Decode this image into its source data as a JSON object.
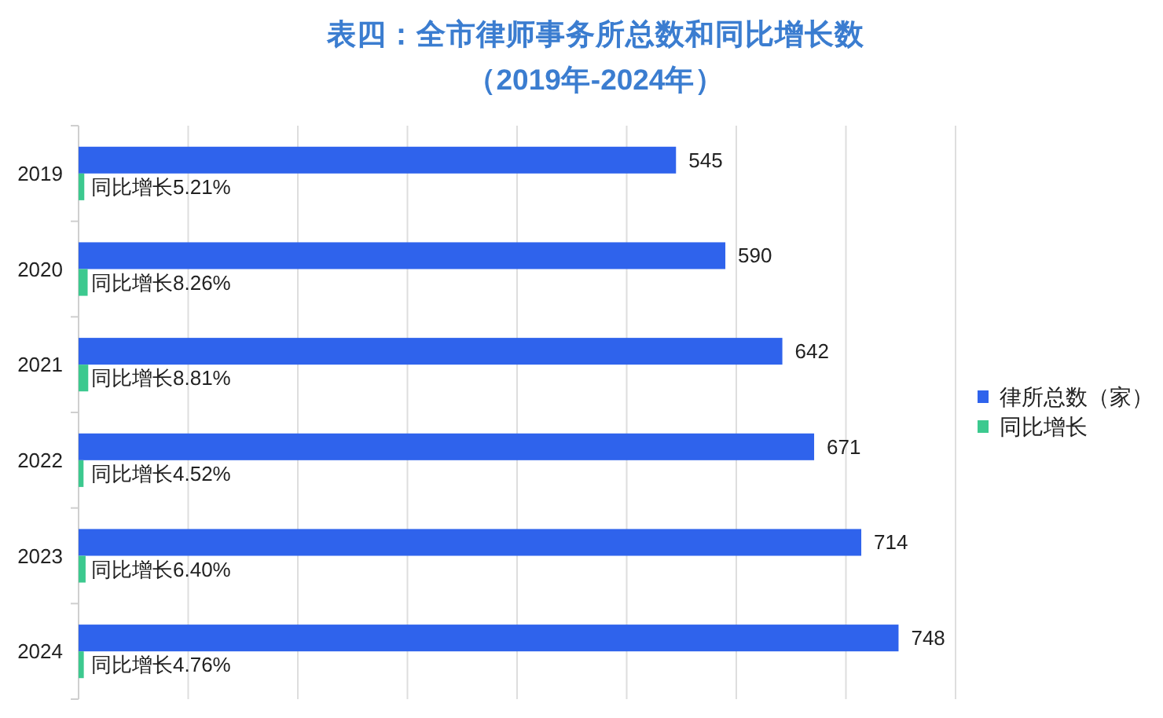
{
  "chart_data": {
    "type": "bar",
    "orientation": "horizontal",
    "title": "表四：全市律师事务所总数和同比增长数",
    "subtitle": "（2019年-2024年）",
    "categories": [
      "2019",
      "2020",
      "2021",
      "2022",
      "2023",
      "2024"
    ],
    "series": [
      {
        "name": "律所总数（家）",
        "color": "#2f63ec",
        "values": [
          545,
          590,
          642,
          671,
          714,
          748
        ],
        "value_labels": [
          "545",
          "590",
          "642",
          "671",
          "714",
          "748"
        ]
      },
      {
        "name": "同比增长",
        "color": "#3cc98f",
        "values": [
          5.21,
          8.26,
          8.81,
          4.52,
          6.4,
          4.76
        ],
        "value_labels": [
          "同比增长5.21%",
          "同比增长8.26%",
          "同比增长8.81%",
          "同比增长4.52%",
          "同比增长6.40%",
          "同比增长4.76%"
        ]
      }
    ],
    "xlim": [
      0,
      800
    ],
    "xticks": [
      {
        "value": 0,
        "label": null
      },
      {
        "value": 100,
        "label": null
      },
      {
        "value": 200,
        "label": null
      },
      {
        "value": 300,
        "label": null
      },
      {
        "value": 400,
        "label": null
      },
      {
        "value": 500,
        "label": null
      },
      {
        "value": 600,
        "label": null
      },
      {
        "value": 700,
        "label": null
      },
      {
        "value": 800,
        "label": null
      }
    ],
    "grid": "x",
    "legend": "right",
    "tick_labels": "y"
  }
}
